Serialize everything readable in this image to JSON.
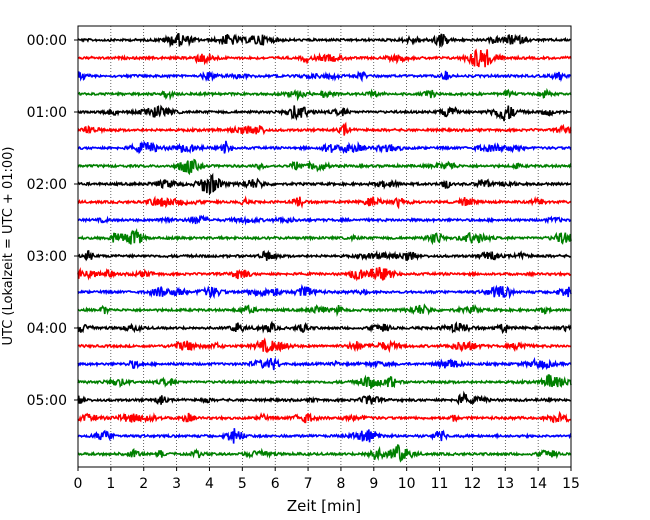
{
  "chart_data": {
    "type": "line",
    "xlabel": "Zeit  [min]",
    "ylabel": "UTC (Lokalzeit = UTC + 01:00)",
    "xlim": [
      0,
      15
    ],
    "x_ticks": [
      0,
      1,
      2,
      3,
      4,
      5,
      6,
      7,
      8,
      9,
      10,
      11,
      12,
      13,
      14,
      15
    ],
    "x_tick_labels": [
      "0",
      "1",
      "2",
      "3",
      "4",
      "5",
      "6",
      "7",
      "8",
      "9",
      "10",
      "11",
      "12",
      "13",
      "14",
      "15"
    ],
    "y_tick_labels": [
      "00:00",
      "01:00",
      "02:00",
      "03:00",
      "04:00",
      "05:00"
    ],
    "y_tick_rows": [
      0,
      4,
      8,
      12,
      16,
      20
    ],
    "trace_minutes": 15,
    "row_count": 24,
    "row_colors": [
      "#000000",
      "#ff0000",
      "#0000ff",
      "#008000"
    ],
    "grid": {
      "x": true,
      "style": "dotted"
    }
  }
}
